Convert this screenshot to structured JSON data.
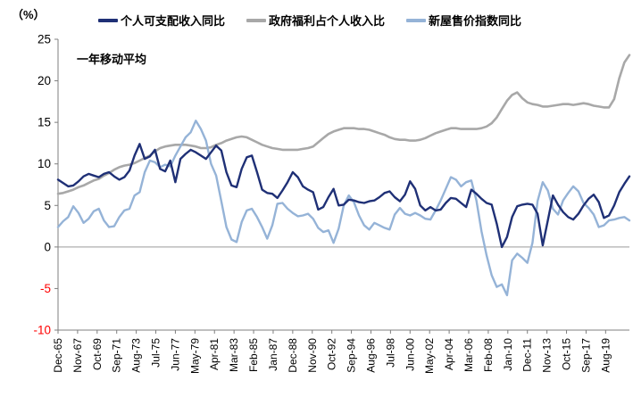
{
  "chart": {
    "percent_label": "（%）",
    "annotation": "一年移动平均",
    "legend": [
      {
        "label": "个人可支配收入同比",
        "color": "#1F3076"
      },
      {
        "label": "政府福利占个人收入比",
        "color": "#A8A8A8"
      },
      {
        "label": "新屋售价指数同比",
        "color": "#95B3D7"
      }
    ],
    "colors": {
      "navy": "#1F3076",
      "gray": "#A8A8A8",
      "light_blue": "#95B3D7",
      "negative_tick": "#FF0000",
      "axis": "#7F7F7F",
      "zero_line": "#9A9A9A"
    }
  },
  "chart_data": {
    "type": "line",
    "title": "",
    "x_axis_note": "monthly timeline Dec-1965 to Dec-2021; series values sampled every 6 months (113 points)",
    "x_tick_interval_months": 23,
    "sample_step_months": 6,
    "x_tick_labels": [
      "Dec-65",
      "Nov-67",
      "Oct-69",
      "Sep-71",
      "Aug-73",
      "Jul-75",
      "Jun-77",
      "May-79",
      "Apr-81",
      "Mar-83",
      "Feb-85",
      "Jan-87",
      "Dec-88",
      "Nov-90",
      "Oct-92",
      "Sep-94",
      "Aug-96",
      "Jul-98",
      "Jun-00",
      "May-02",
      "Apr-04",
      "Mar-06",
      "Feb-08",
      "Jan-10",
      "Dec-11",
      "Nov-13",
      "Oct-15",
      "Sep-17",
      "Aug-19"
    ],
    "ylim": [
      -10,
      25
    ],
    "y_ticks": [
      25,
      20,
      15,
      10,
      5,
      0,
      -5,
      -10
    ],
    "y_unit": "%",
    "legend_position": "top",
    "grid": "zero baseline only",
    "series": [
      {
        "name": "个人可支配收入同比",
        "color": "#1F3076",
        "values": [
          8.1,
          7.7,
          7.3,
          7.4,
          7.9,
          8.5,
          8.8,
          8.6,
          8.4,
          8.8,
          9.0,
          8.5,
          8.1,
          8.4,
          9.2,
          11.0,
          12.4,
          10.6,
          10.9,
          11.7,
          9.4,
          9.1,
          10.4,
          7.8,
          10.6,
          11.2,
          11.7,
          11.4,
          11.0,
          10.6,
          11.4,
          12.2,
          11.6,
          9.0,
          7.4,
          7.2,
          9.4,
          10.8,
          11.0,
          9.0,
          6.9,
          6.5,
          6.4,
          5.9,
          6.8,
          7.8,
          9.0,
          8.4,
          7.3,
          6.9,
          6.6,
          4.5,
          4.8,
          6.0,
          7.0,
          5.0,
          5.1,
          5.7,
          5.6,
          5.4,
          5.3,
          5.5,
          5.6,
          6.0,
          6.5,
          6.7,
          6.0,
          5.5,
          6.3,
          7.9,
          7.0,
          5.0,
          4.4,
          4.8,
          4.4,
          4.5,
          5.3,
          5.9,
          5.8,
          5.3,
          4.8,
          6.9,
          6.4,
          5.8,
          5.3,
          5.1,
          2.8,
          0.0,
          1.2,
          3.6,
          4.9,
          5.1,
          5.2,
          5.1,
          4.0,
          0.2,
          3.2,
          6.2,
          5.1,
          4.2,
          3.6,
          3.3,
          4.0,
          5.0,
          5.8,
          6.3,
          5.4,
          3.5,
          3.8,
          5.0,
          6.6,
          7.6,
          8.5
        ]
      },
      {
        "name": "政府福利占个人收入比",
        "color": "#A8A8A8",
        "values": [
          6.4,
          6.5,
          6.7,
          6.9,
          7.2,
          7.4,
          7.7,
          8.0,
          8.2,
          8.6,
          8.9,
          9.3,
          9.6,
          9.8,
          9.9,
          10.1,
          10.4,
          10.7,
          11.0,
          11.5,
          11.9,
          12.1,
          12.2,
          12.3,
          12.3,
          12.3,
          12.2,
          12.1,
          11.9,
          11.9,
          12.0,
          12.3,
          12.5,
          12.8,
          13.0,
          13.2,
          13.3,
          13.2,
          12.9,
          12.6,
          12.3,
          12.1,
          11.9,
          11.8,
          11.7,
          11.7,
          11.7,
          11.7,
          11.8,
          11.9,
          12.1,
          12.6,
          13.1,
          13.6,
          13.9,
          14.1,
          14.3,
          14.3,
          14.3,
          14.2,
          14.2,
          14.1,
          13.9,
          13.7,
          13.5,
          13.2,
          13.0,
          12.9,
          12.9,
          12.8,
          12.8,
          12.9,
          13.1,
          13.4,
          13.7,
          13.9,
          14.1,
          14.3,
          14.3,
          14.2,
          14.2,
          14.2,
          14.2,
          14.3,
          14.5,
          14.9,
          15.6,
          16.6,
          17.6,
          18.3,
          18.6,
          17.9,
          17.4,
          17.2,
          17.1,
          16.9,
          16.9,
          17.0,
          17.1,
          17.2,
          17.2,
          17.1,
          17.2,
          17.3,
          17.2,
          17.0,
          16.9,
          16.8,
          16.8,
          17.8,
          20.3,
          22.2,
          23.1
        ]
      },
      {
        "name": "新屋售价指数同比",
        "color": "#95B3D7",
        "values": [
          2.4,
          3.1,
          3.6,
          4.9,
          4.1,
          2.9,
          3.4,
          4.3,
          4.6,
          3.2,
          2.4,
          2.5,
          3.6,
          4.4,
          4.6,
          6.2,
          6.6,
          9.0,
          10.4,
          10.2,
          9.6,
          9.9,
          9.7,
          11.0,
          12.1,
          13.2,
          13.8,
          15.2,
          14.2,
          12.8,
          10.0,
          8.6,
          5.5,
          2.4,
          0.9,
          0.6,
          3.0,
          4.4,
          4.6,
          3.6,
          2.4,
          1.0,
          2.6,
          5.2,
          5.3,
          4.6,
          4.1,
          3.7,
          3.8,
          4.0,
          3.4,
          2.3,
          1.8,
          2.0,
          0.5,
          2.2,
          5.0,
          6.2,
          5.4,
          3.8,
          2.6,
          2.1,
          2.9,
          2.6,
          2.3,
          2.1,
          3.9,
          4.7,
          4.0,
          3.8,
          4.1,
          3.8,
          3.4,
          3.3,
          4.4,
          5.6,
          7.0,
          8.4,
          8.1,
          7.3,
          7.8,
          8.0,
          5.6,
          1.9,
          -1.0,
          -3.4,
          -4.8,
          -4.5,
          -5.8,
          -1.6,
          -0.8,
          -1.3,
          -1.9,
          0.5,
          5.5,
          7.8,
          6.8,
          4.6,
          3.9,
          5.6,
          6.5,
          7.3,
          6.7,
          5.3,
          4.7,
          3.9,
          2.4,
          2.6,
          3.2,
          3.3,
          3.5,
          3.6,
          3.2
        ]
      }
    ]
  }
}
